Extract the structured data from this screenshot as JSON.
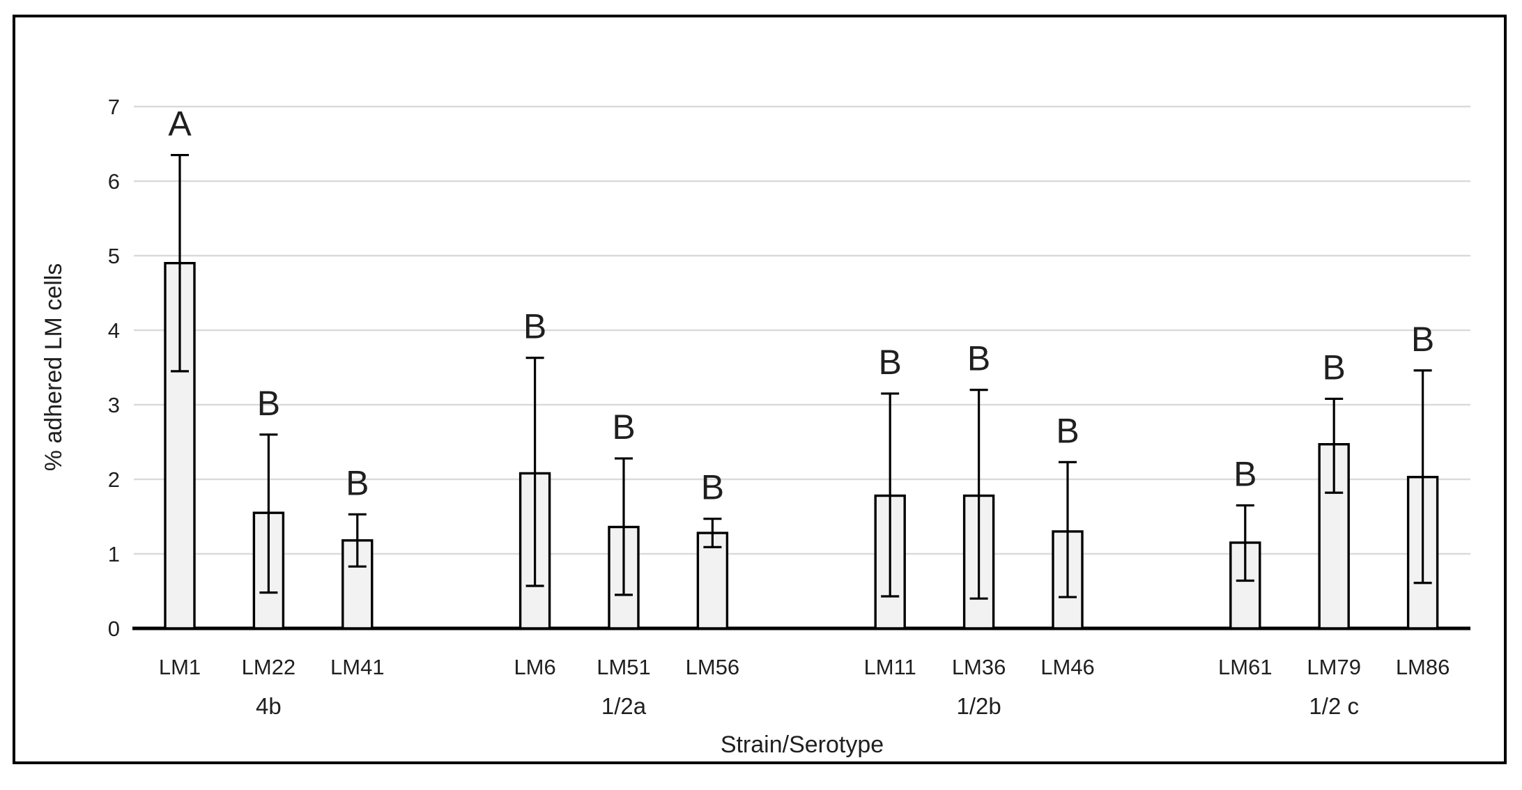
{
  "figure": {
    "background": "#ffffff",
    "border_color": "#000000"
  },
  "chart_data": {
    "type": "bar",
    "title": "",
    "xlabel": "Strain/Serotype",
    "ylabel": "% adhered LM cells",
    "ylim": [
      0,
      7
    ],
    "yticks": [
      0,
      1,
      2,
      3,
      4,
      5,
      6,
      7
    ],
    "grid": "horizontal",
    "legend": "none",
    "gridline_color": "#dadada",
    "axis_line_color": "#000000",
    "bar_fill": "#f2f2f2",
    "bar_stroke": "#000000",
    "error_bar_color": "#000000",
    "text_color": "#1f1f1f",
    "groups": [
      {
        "serotype": "4b",
        "strains": [
          {
            "label": "LM1",
            "mean": 4.9,
            "whisker_low": 3.45,
            "whisker_high": 6.35,
            "letter": "A"
          },
          {
            "label": "LM22",
            "mean": 1.55,
            "whisker_low": 0.48,
            "whisker_high": 2.6,
            "letter": "B"
          },
          {
            "label": "LM41",
            "mean": 1.18,
            "whisker_low": 0.83,
            "whisker_high": 1.53,
            "letter": "B"
          }
        ]
      },
      {
        "serotype": "1/2a",
        "strains": [
          {
            "label": "LM6",
            "mean": 2.08,
            "whisker_low": 0.57,
            "whisker_high": 3.63,
            "letter": "B"
          },
          {
            "label": "LM51",
            "mean": 1.36,
            "whisker_low": 0.45,
            "whisker_high": 2.28,
            "letter": "B"
          },
          {
            "label": "LM56",
            "mean": 1.28,
            "whisker_low": 1.09,
            "whisker_high": 1.47,
            "letter": "B"
          }
        ]
      },
      {
        "serotype": "1/2b",
        "strains": [
          {
            "label": "LM11",
            "mean": 1.78,
            "whisker_low": 0.43,
            "whisker_high": 3.15,
            "letter": "B"
          },
          {
            "label": "LM36",
            "mean": 1.78,
            "whisker_low": 0.4,
            "whisker_high": 3.2,
            "letter": "B"
          },
          {
            "label": "LM46",
            "mean": 1.3,
            "whisker_low": 0.42,
            "whisker_high": 2.23,
            "letter": "B"
          }
        ]
      },
      {
        "serotype": "1/2 c",
        "strains": [
          {
            "label": "LM61",
            "mean": 1.15,
            "whisker_low": 0.64,
            "whisker_high": 1.65,
            "letter": "B"
          },
          {
            "label": "LM79",
            "mean": 2.47,
            "whisker_low": 1.82,
            "whisker_high": 3.08,
            "letter": "B"
          },
          {
            "label": "LM86",
            "mean": 2.03,
            "whisker_low": 0.61,
            "whisker_high": 3.46,
            "letter": "B"
          }
        ]
      }
    ]
  }
}
